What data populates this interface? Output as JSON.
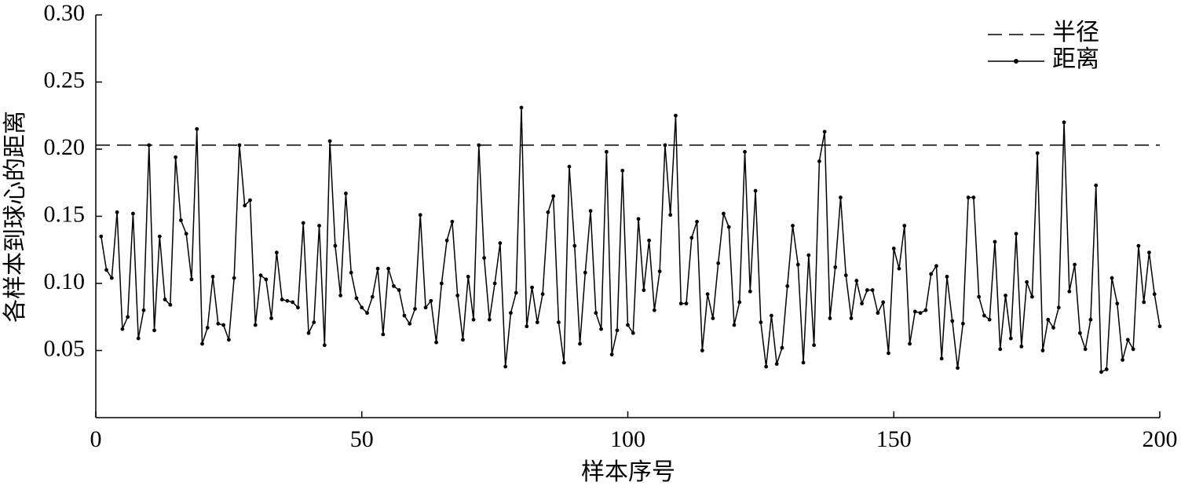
{
  "chart_data": {
    "type": "line",
    "xlabel": "样本序号",
    "ylabel": "各样本到球心的距离",
    "xlim": [
      0,
      200
    ],
    "ylim": [
      0,
      0.3
    ],
    "xticks": [
      0,
      50,
      100,
      150,
      200
    ],
    "yticks": [
      {
        "value": 0.3,
        "label": "0.30"
      },
      0.25,
      {
        "value": 0.2,
        "label": "0.20"
      },
      0.15,
      {
        "value": 0.1,
        "label": "0.10"
      },
      0.05
    ],
    "grid": false,
    "legend": "upper right",
    "series": [
      {
        "name": "半径",
        "color": "#000000",
        "style": "dashed",
        "marker": false,
        "x": [
          0,
          200
        ],
        "values": [
          0.203,
          0.203
        ]
      },
      {
        "name": "距离",
        "color": "#000000",
        "style": "solid",
        "marker": true,
        "x": [
          1,
          2,
          3,
          4,
          5,
          6,
          7,
          8,
          9,
          10,
          11,
          12,
          13,
          14,
          15,
          16,
          17,
          18,
          19,
          20,
          21,
          22,
          23,
          24,
          25,
          26,
          27,
          28,
          29,
          30,
          31,
          32,
          33,
          34,
          35,
          36,
          37,
          38,
          39,
          40,
          41,
          42,
          43,
          44,
          45,
          46,
          47,
          48,
          49,
          50,
          51,
          52,
          53,
          54,
          55,
          56,
          57,
          58,
          59,
          60,
          61,
          62,
          63,
          64,
          65,
          66,
          67,
          68,
          69,
          70,
          71,
          72,
          73,
          74,
          75,
          76,
          77,
          78,
          79,
          80,
          81,
          82,
          83,
          84,
          85,
          86,
          87,
          88,
          89,
          90,
          91,
          92,
          93,
          94,
          95,
          96,
          97,
          98,
          99,
          100,
          101,
          102,
          103,
          104,
          105,
          106,
          107,
          108,
          109,
          110,
          111,
          112,
          113,
          114,
          115,
          116,
          117,
          118,
          119,
          120,
          121,
          122,
          123,
          124,
          125,
          126,
          127,
          128,
          129,
          130,
          131,
          132,
          133,
          134,
          135,
          136,
          137,
          138,
          139,
          140,
          141,
          142,
          143,
          144,
          145,
          146,
          147,
          148,
          149,
          150,
          151,
          152,
          153,
          154,
          155,
          156,
          157,
          158,
          159,
          160,
          161,
          162,
          163,
          164,
          165,
          166,
          167,
          168,
          169,
          170,
          171,
          172,
          173,
          174,
          175,
          176,
          177,
          178,
          179,
          180,
          181,
          182,
          183,
          184,
          185,
          186,
          187,
          188,
          189,
          190,
          191,
          192,
          193,
          194,
          195,
          196,
          197,
          198,
          199,
          200
        ],
        "values": [
          0.135,
          0.11,
          0.104,
          0.153,
          0.066,
          0.075,
          0.152,
          0.059,
          0.08,
          0.203,
          0.065,
          0.135,
          0.088,
          0.084,
          0.194,
          0.147,
          0.137,
          0.103,
          0.215,
          0.055,
          0.067,
          0.105,
          0.07,
          0.069,
          0.058,
          0.104,
          0.203,
          0.158,
          0.162,
          0.069,
          0.106,
          0.103,
          0.074,
          0.123,
          0.088,
          0.087,
          0.086,
          0.082,
          0.145,
          0.063,
          0.071,
          0.143,
          0.054,
          0.206,
          0.128,
          0.091,
          0.167,
          0.108,
          0.089,
          0.082,
          0.078,
          0.09,
          0.111,
          0.062,
          0.111,
          0.098,
          0.095,
          0.076,
          0.07,
          0.081,
          0.151,
          0.082,
          0.087,
          0.056,
          0.1,
          0.132,
          0.146,
          0.091,
          0.058,
          0.105,
          0.073,
          0.203,
          0.119,
          0.073,
          0.1,
          0.13,
          0.038,
          0.078,
          0.093,
          0.231,
          0.068,
          0.097,
          0.071,
          0.092,
          0.153,
          0.165,
          0.071,
          0.041,
          0.187,
          0.128,
          0.055,
          0.108,
          0.154,
          0.078,
          0.066,
          0.198,
          0.047,
          0.065,
          0.184,
          0.069,
          0.063,
          0.148,
          0.095,
          0.132,
          0.08,
          0.109,
          0.203,
          0.151,
          0.225,
          0.085,
          0.085,
          0.134,
          0.146,
          0.05,
          0.092,
          0.074,
          0.115,
          0.152,
          0.142,
          0.069,
          0.086,
          0.198,
          0.094,
          0.169,
          0.071,
          0.038,
          0.076,
          0.04,
          0.052,
          0.098,
          0.143,
          0.114,
          0.041,
          0.121,
          0.054,
          0.191,
          0.213,
          0.074,
          0.112,
          0.164,
          0.106,
          0.074,
          0.102,
          0.085,
          0.095,
          0.095,
          0.078,
          0.086,
          0.048,
          0.126,
          0.111,
          0.143,
          0.055,
          0.079,
          0.078,
          0.08,
          0.107,
          0.113,
          0.044,
          0.105,
          0.072,
          0.037,
          0.07,
          0.164,
          0.164,
          0.09,
          0.076,
          0.073,
          0.131,
          0.051,
          0.091,
          0.059,
          0.137,
          0.053,
          0.101,
          0.09,
          0.197,
          0.05,
          0.073,
          0.067,
          0.082,
          0.22,
          0.094,
          0.114,
          0.063,
          0.051,
          0.073,
          0.173,
          0.034,
          0.036,
          0.104,
          0.085,
          0.043,
          0.058,
          0.051,
          0.128,
          0.086,
          0.123,
          0.092,
          0.068
        ]
      }
    ]
  }
}
